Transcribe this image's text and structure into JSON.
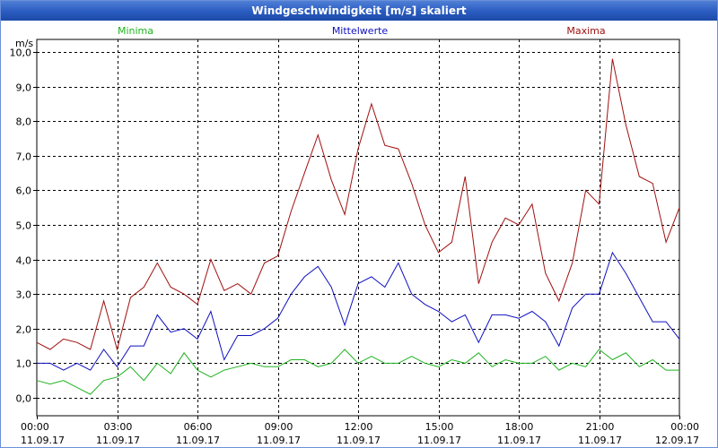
{
  "window": {
    "title": "Windgeschwindigkeit [m/s] skaliert"
  },
  "colors": {
    "minima": "#1fb31f",
    "mittel": "#1010c0",
    "maxima": "#a01010"
  },
  "chart_data": {
    "type": "line",
    "title": "Windgeschwindigkeit [m/s] skaliert",
    "ylabel": "m/s",
    "xlabel": "",
    "ylim": [
      0,
      10
    ],
    "xlim": [
      0,
      24
    ],
    "grid": true,
    "yticks": [
      "0,0",
      "1,0",
      "2,0",
      "3,0",
      "4,0",
      "5,0",
      "6,0",
      "7,0",
      "8,0",
      "9,0",
      "10,0"
    ],
    "xticks": [
      {
        "time": "00:00",
        "date": "11.09.17"
      },
      {
        "time": "03:00",
        "date": "11.09.17"
      },
      {
        "time": "06:00",
        "date": "11.09.17"
      },
      {
        "time": "09:00",
        "date": "11.09.17"
      },
      {
        "time": "12:00",
        "date": "11.09.17"
      },
      {
        "time": "15:00",
        "date": "11.09.17"
      },
      {
        "time": "18:00",
        "date": "11.09.17"
      },
      {
        "time": "21:00",
        "date": "11.09.17"
      },
      {
        "time": "00:00",
        "date": "12.09.17"
      }
    ],
    "x": [
      0,
      0.5,
      1,
      1.5,
      2,
      2.5,
      3,
      3.5,
      4,
      4.5,
      5,
      5.5,
      6,
      6.5,
      7,
      7.5,
      8,
      8.5,
      9,
      9.5,
      10,
      10.5,
      11,
      11.5,
      12,
      12.5,
      13,
      13.5,
      14,
      14.5,
      15,
      15.5,
      16,
      16.5,
      17,
      17.5,
      18,
      18.5,
      19,
      19.5,
      20,
      20.5,
      21,
      21.5,
      22,
      22.5,
      23,
      23.5,
      24
    ],
    "series": [
      {
        "name": "Minima",
        "key": "minima",
        "values": [
          0.5,
          0.4,
          0.5,
          0.3,
          0.1,
          0.5,
          0.6,
          0.9,
          0.5,
          1.0,
          0.7,
          1.3,
          0.8,
          0.6,
          0.8,
          0.9,
          1.0,
          0.9,
          0.9,
          1.1,
          1.1,
          0.9,
          1.0,
          1.4,
          1.0,
          1.2,
          1.0,
          1.0,
          1.2,
          1.0,
          0.9,
          1.1,
          1.0,
          1.3,
          0.9,
          1.1,
          1.0,
          1.0,
          1.2,
          0.8,
          1.0,
          0.9,
          1.4,
          1.1,
          1.3,
          0.9,
          1.1,
          0.8,
          0.8
        ]
      },
      {
        "name": "Mittelwerte",
        "key": "mittel",
        "values": [
          1.0,
          1.0,
          0.8,
          1.0,
          0.8,
          1.4,
          0.9,
          1.5,
          1.5,
          2.4,
          1.9,
          2.0,
          1.7,
          2.5,
          1.1,
          1.8,
          1.8,
          2.0,
          2.3,
          3.0,
          3.5,
          3.8,
          3.2,
          2.1,
          3.3,
          3.5,
          3.2,
          3.9,
          3.0,
          2.7,
          2.5,
          2.2,
          2.4,
          1.6,
          2.4,
          2.4,
          2.3,
          2.5,
          2.2,
          1.5,
          2.6,
          3.0,
          3.0,
          4.2,
          3.6,
          2.9,
          2.2,
          2.2,
          1.7
        ]
      },
      {
        "name": "Maxima",
        "key": "maxima",
        "values": [
          1.6,
          1.4,
          1.7,
          1.6,
          1.4,
          2.8,
          1.4,
          2.9,
          3.2,
          3.9,
          3.2,
          3.0,
          2.7,
          4.0,
          3.1,
          3.3,
          3.0,
          3.9,
          4.1,
          5.4,
          6.5,
          7.6,
          6.3,
          5.3,
          7.2,
          8.5,
          7.3,
          7.2,
          6.2,
          5.0,
          4.2,
          4.5,
          6.4,
          3.3,
          4.5,
          5.2,
          5.0,
          5.6,
          3.6,
          2.8,
          3.9,
          6.0,
          5.6,
          9.8,
          7.9,
          6.4,
          6.2,
          4.5,
          5.5
        ]
      }
    ]
  }
}
